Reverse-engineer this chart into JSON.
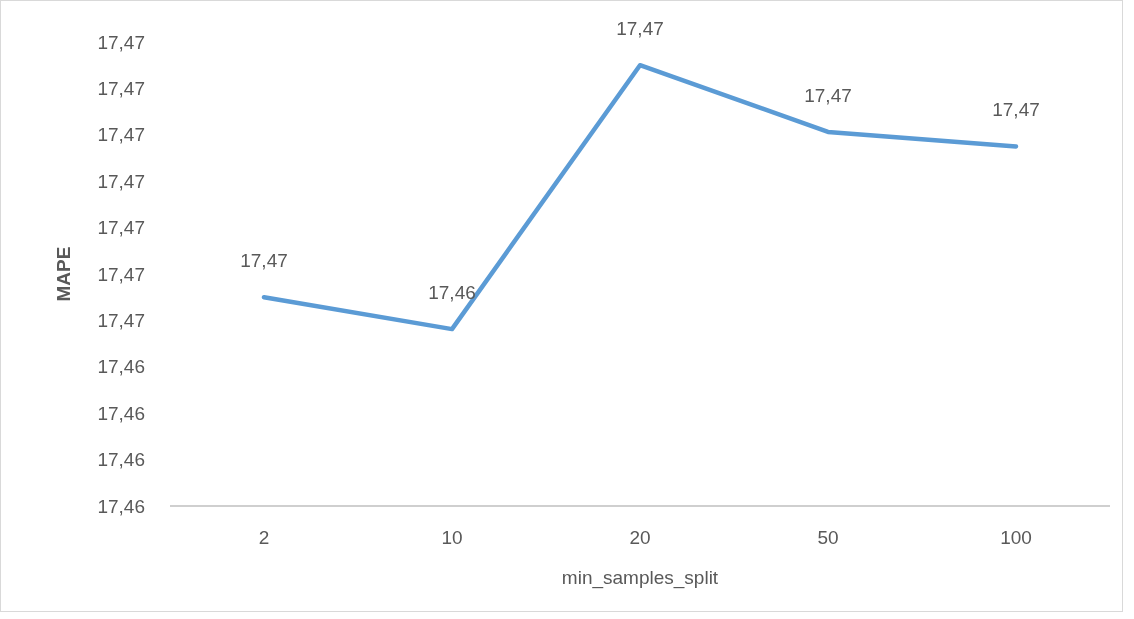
{
  "chart_data": {
    "type": "line",
    "xlabel": "min_samples_split",
    "ylabel": "MAPE",
    "categories": [
      "2",
      "10",
      "20",
      "50",
      "100"
    ],
    "series": [
      {
        "color": "#5b9bd5",
        "values": [
          17.4659,
          17.4648,
          17.4739,
          17.4716,
          17.4711
        ],
        "value_labels": [
          "17,47",
          "17,46",
          "17,47",
          "17,47",
          "17,47"
        ]
      }
    ],
    "ylim": [
      17.4587,
      17.4747
    ],
    "yticks": [
      {
        "value": 17.4587,
        "label": "17,46"
      },
      {
        "value": 17.4603,
        "label": "17,46"
      },
      {
        "value": 17.4619,
        "label": "17,46"
      },
      {
        "value": 17.4635,
        "label": "17,46"
      },
      {
        "value": 17.4651,
        "label": "17,47"
      },
      {
        "value": 17.4667,
        "label": "17,47"
      },
      {
        "value": 17.4683,
        "label": "17,47"
      },
      {
        "value": 17.4699,
        "label": "17,47"
      },
      {
        "value": 17.4715,
        "label": "17,47"
      },
      {
        "value": 17.4731,
        "label": "17,47"
      },
      {
        "value": 17.4747,
        "label": "17,47"
      }
    ],
    "marker": "none",
    "line_style": "solid"
  }
}
